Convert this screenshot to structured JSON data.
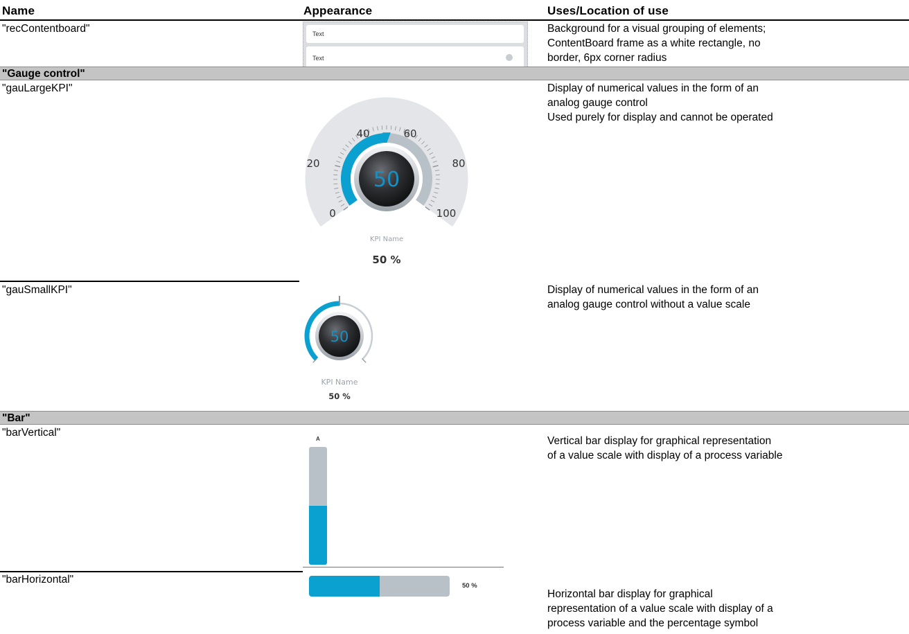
{
  "header": {
    "name": "Name",
    "appearance": "Appearance",
    "uses": "Uses/Location of use"
  },
  "rows": {
    "contentboard": {
      "name": "\"recContentboard\"",
      "card_text_1": "Text",
      "card_text_2": "Text",
      "uses_1": "Background for a visual grouping of elements;",
      "uses_2": "ContentBoard frame as a white rectangle, no",
      "uses_3": "border, 6px corner radius"
    },
    "gauge_section": "\"Gauge control\"",
    "gauge_large": {
      "name": "\"gauLargeKPI\"",
      "scale_0": "0",
      "scale_20": "20",
      "scale_40": "40",
      "scale_60": "60",
      "scale_80": "80",
      "scale_100": "100",
      "center_value": "50",
      "kpi_name": "KPI Name",
      "kpi_value": "50 %",
      "value": 50,
      "uses_1": "Display of numerical values in the form of an",
      "uses_2": "analog gauge control",
      "uses_3": "Used purely for display and cannot be operated"
    },
    "gauge_small": {
      "name": "\"gauSmallKPI\"",
      "center_value": "50",
      "kpi_name": "KPI Name",
      "kpi_value": "50 %",
      "value": 50,
      "uses_1": "Display of numerical values in the form of an",
      "uses_2": "analog gauge control without a value scale"
    },
    "bar_section": "\"Bar\"",
    "bar_vertical": {
      "name": "\"barVertical\"",
      "label": "A",
      "fill_fraction": 0.5,
      "uses_1": "Vertical bar display for graphical representation",
      "uses_2": "of a value scale with display of a process variable"
    },
    "bar_horizontal": {
      "name": "\"barHorizontal\"",
      "value_text": "50 %",
      "fill_fraction": 0.5,
      "uses_1": "Horizontal bar display for graphical",
      "uses_2": "representation of a value scale with display of a",
      "uses_3": "process variable and the percentage symbol"
    }
  },
  "colors": {
    "accent": "#0aa0cf",
    "track": "#b9c1c8",
    "section_band": "#c4c4c4",
    "gauge_face": "#e4e5e9"
  }
}
